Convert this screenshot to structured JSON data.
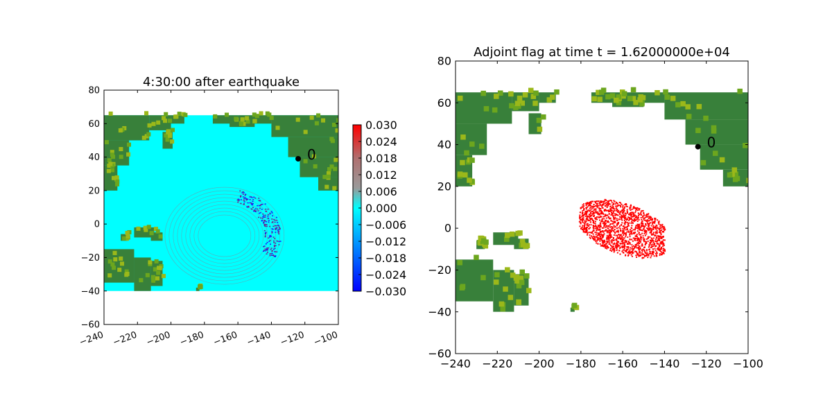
{
  "colors": {
    "ocean": "#00ffff",
    "land": "#38803a",
    "land_light": "#6ca61e",
    "land_yellow": "#9bb81a",
    "wave_dark": "#6b1f8f",
    "wave_gray": "#7f8c9c",
    "adjoint_flag": "#ff0000",
    "marker": "#000000"
  },
  "chart_data": [
    {
      "type": "heatmap",
      "title": "4:30:00 after earthquake",
      "xlim": [
        -240,
        -100
      ],
      "ylim": [
        -60,
        80
      ],
      "xticks": [
        -240,
        -220,
        -200,
        -180,
        -160,
        -140,
        -120,
        -100
      ],
      "yticks": [
        -60,
        -40,
        -20,
        0,
        20,
        40,
        60,
        80
      ],
      "xticklabels": [
        "−240",
        "−220",
        "−200",
        "−180",
        "−160",
        "−140",
        "−120",
        "−100"
      ],
      "yticklabels": [
        "−60",
        "−40",
        "−20",
        "0",
        "20",
        "40",
        "60",
        "80"
      ],
      "domain": {
        "lon": [
          -240,
          -100
        ],
        "lat": [
          -40,
          65
        ]
      },
      "colorbar": {
        "range": [
          -0.03,
          0.03
        ],
        "ticks": [
          0.03,
          0.024,
          0.018,
          0.012,
          0.006,
          0.0,
          -0.006,
          -0.012,
          -0.018,
          -0.024,
          -0.03
        ],
        "ticklabels": [
          "0.030",
          "0.024",
          "0.018",
          "0.012",
          "0.006",
          "0.000",
          "−0.006",
          "−0.012",
          "−0.018",
          "−0.024",
          "−0.030"
        ]
      },
      "marker": {
        "label": "0",
        "lon": -124,
        "lat": 39
      }
    },
    {
      "type": "heatmap",
      "title": "Adjoint flag at time t = 1.62000000e+04",
      "xlim": [
        -240,
        -100
      ],
      "ylim": [
        -60,
        80
      ],
      "xticks": [
        -240,
        -220,
        -200,
        -180,
        -160,
        -140,
        -120,
        -100
      ],
      "yticks": [
        -60,
        -40,
        -20,
        0,
        20,
        40,
        60,
        80
      ],
      "xticklabels": [
        "−240",
        "−220",
        "−200",
        "−180",
        "−160",
        "−140",
        "−120",
        "−100"
      ],
      "yticklabels": [
        "−60",
        "−40",
        "−20",
        "0",
        "20",
        "40",
        "60",
        "80"
      ],
      "domain": {
        "lon": [
          -240,
          -100
        ],
        "lat": [
          -40,
          65
        ]
      },
      "flagged_region": {
        "lon": [
          -181,
          -140
        ],
        "lat": [
          -17,
          17
        ]
      },
      "marker": {
        "label": "0",
        "lon": -124,
        "lat": 39
      }
    }
  ]
}
